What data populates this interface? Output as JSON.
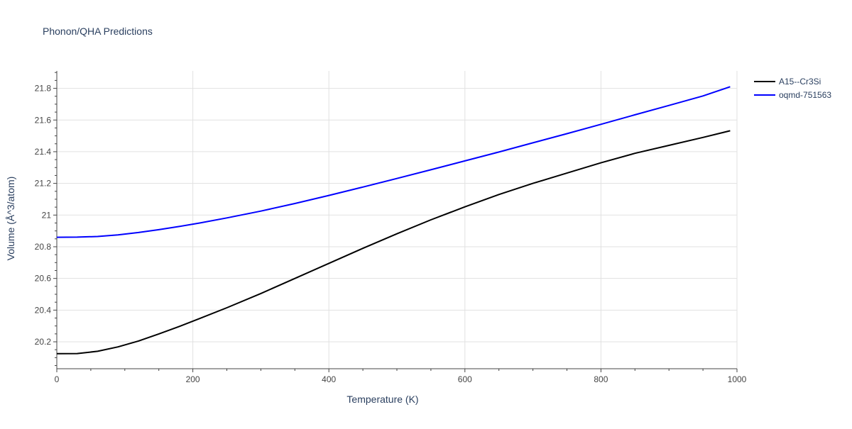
{
  "chart_data": {
    "type": "line",
    "title": "Phonon/QHA Predictions",
    "xlabel": "Temperature (K)",
    "ylabel": "Volume (Å^3/atom)",
    "xlim": [
      0,
      1000
    ],
    "ylim": [
      20.03,
      21.91
    ],
    "x_ticks": [
      0,
      200,
      400,
      600,
      800,
      1000
    ],
    "x_tick_labels": [
      "0",
      "200",
      "400",
      "600",
      "800",
      "1000"
    ],
    "y_ticks": [
      20.2,
      20.4,
      20.6,
      20.8,
      21.0,
      21.2,
      21.4,
      21.6,
      21.8
    ],
    "y_tick_labels": [
      "20.2",
      "20.4",
      "20.6",
      "20.8",
      "21",
      "21.2",
      "21.4",
      "21.6",
      "21.8"
    ],
    "grid": true,
    "legend_position": "top-right",
    "series": [
      {
        "name": "A15--Cr3Si",
        "color": "#000000",
        "x": [
          0,
          30,
          60,
          90,
          120,
          150,
          180,
          210,
          250,
          300,
          350,
          400,
          450,
          500,
          550,
          600,
          650,
          700,
          750,
          800,
          850,
          900,
          950,
          990
        ],
        "y": [
          20.125,
          20.126,
          20.14,
          20.168,
          20.205,
          20.25,
          20.297,
          20.347,
          20.415,
          20.505,
          20.6,
          20.695,
          20.79,
          20.882,
          20.97,
          21.052,
          21.13,
          21.2,
          21.265,
          21.33,
          21.39,
          21.44,
          21.49,
          21.532
        ]
      },
      {
        "name": "oqmd-751563",
        "color": "#0000ff",
        "x": [
          0,
          30,
          60,
          90,
          120,
          150,
          180,
          210,
          250,
          300,
          350,
          400,
          450,
          500,
          550,
          600,
          650,
          700,
          750,
          800,
          850,
          900,
          950,
          990
        ],
        "y": [
          20.86,
          20.861,
          20.865,
          20.875,
          20.89,
          20.908,
          20.928,
          20.95,
          20.982,
          21.025,
          21.073,
          21.124,
          21.177,
          21.231,
          21.286,
          21.342,
          21.398,
          21.456,
          21.514,
          21.573,
          21.633,
          21.692,
          21.752,
          21.81
        ]
      }
    ]
  }
}
